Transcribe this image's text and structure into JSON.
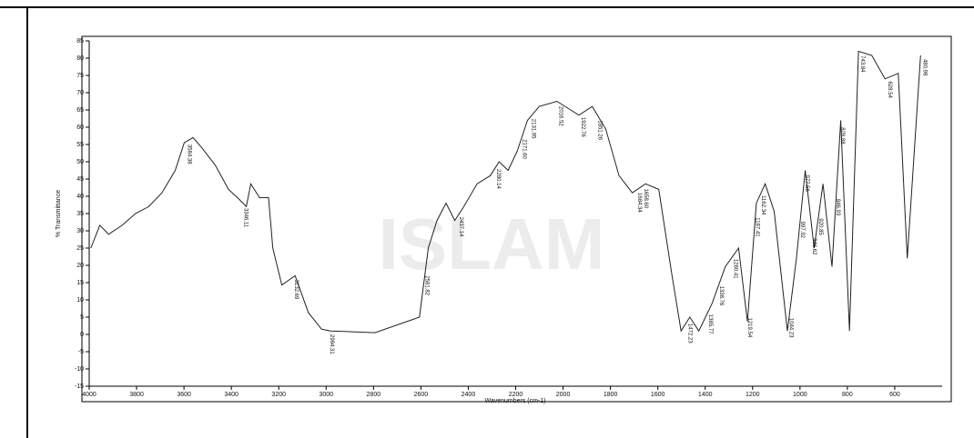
{
  "watermark": "ISLAM",
  "chart_data": {
    "type": "line",
    "x_label": "Wavenumbers (cm-1)",
    "y_label": "% Transmittance",
    "xlim": [
      4000,
      400
    ],
    "ylim": [
      -15,
      85
    ],
    "xticks": [
      4000,
      3800,
      3600,
      3400,
      3200,
      3000,
      2800,
      2600,
      2400,
      2200,
      2000,
      1800,
      1600,
      1400,
      1200,
      1000,
      800,
      600
    ],
    "yticks": [
      -15,
      -10,
      -5,
      0,
      5,
      10,
      15,
      20,
      25,
      30,
      35,
      40,
      45,
      50,
      55,
      60,
      65,
      70,
      75,
      80,
      85
    ],
    "reversed_x": true,
    "series": [
      {
        "color": "#222222",
        "x": [
          3993,
          3955,
          3918,
          3861,
          3805,
          3749,
          3693,
          3637,
          3599,
          3562,
          3524,
          3468,
          3412,
          3374,
          3337,
          3318,
          3281,
          3243,
          3225,
          3187,
          3131,
          3075,
          3019,
          2981,
          2794,
          2606,
          2569,
          2532,
          2494,
          2457,
          2419,
          2363,
          2307,
          2270,
          2232,
          2194,
          2150,
          2101,
          2026,
          1933,
          1877,
          1820,
          1764,
          1708,
          1652,
          1596,
          1540,
          1502,
          1465,
          1427,
          1371,
          1315,
          1259,
          1222,
          1184,
          1147,
          1109,
          1053,
          1015,
          978,
          940,
          903,
          865,
          828,
          791,
          753,
          697,
          641,
          585,
          547,
          491
        ],
        "values": [
          25,
          31.6,
          29,
          31.6,
          35,
          37,
          41,
          47.5,
          55.5,
          57,
          54,
          49,
          42,
          39.6,
          37,
          43.6,
          39.6,
          39.6,
          25,
          14.3,
          17,
          6.3,
          1.5,
          1,
          0.5,
          5,
          25,
          33,
          38,
          33,
          37,
          43.6,
          46,
          50,
          47.5,
          53,
          62,
          66,
          67.5,
          63.5,
          66,
          59.5,
          46,
          41,
          43.6,
          42,
          17,
          1,
          5,
          1,
          9,
          19.6,
          25,
          3.7,
          38,
          43.6,
          35.6,
          1,
          22,
          47.5,
          25,
          43.6,
          19.6,
          62,
          1,
          82,
          80.8,
          74,
          75.6,
          22,
          80.8
        ]
      }
    ],
    "peak_labels": [
      "3584.38",
      "3346.11",
      "3132.69",
      "2984.31",
      "2581.82",
      "2437.14",
      "2280.14",
      "2171.60",
      "2131.95",
      "2016.52",
      "1922.76",
      "1851.26",
      "1684.34",
      "1658.60",
      "1472.23",
      "1385.77",
      "1338.76",
      "1280.41",
      "1219.54",
      "1187.41",
      "1162.34",
      "1044.23",
      "997.92",
      "977.56",
      "946.62",
      "920.85",
      "846.93",
      "828.88",
      "743.84",
      "628.54",
      "480.98"
    ]
  }
}
